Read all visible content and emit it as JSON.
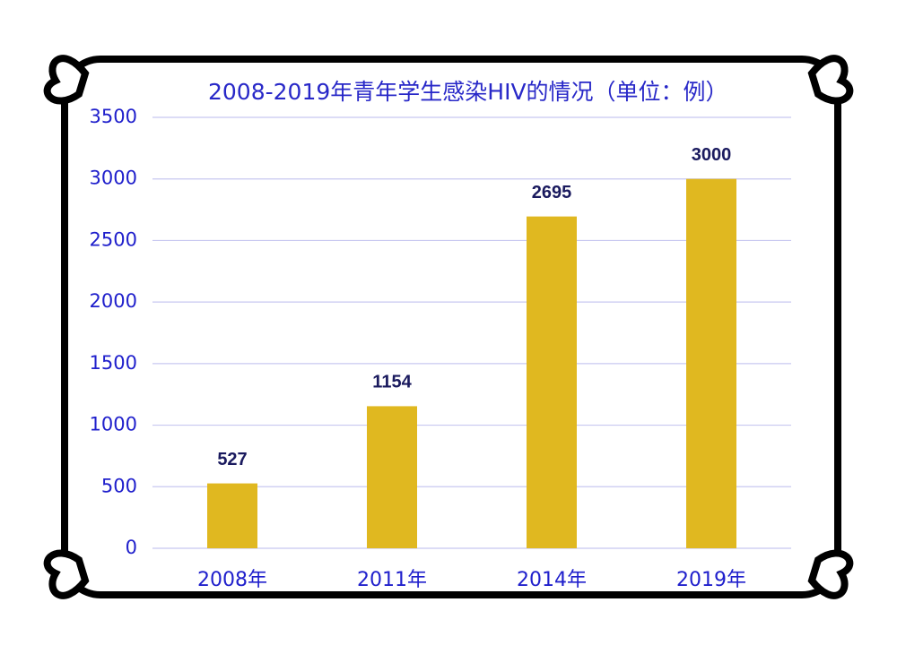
{
  "chart_data": {
    "type": "bar",
    "title": "2008-2019年青年学生感染HIV的情况（单位：例）",
    "categories": [
      "2008年",
      "2011年",
      "2014年",
      "2019年"
    ],
    "values": [
      527,
      1154,
      2695,
      3000
    ],
    "color": "#e0b820",
    "ylim": [
      0,
      3500
    ],
    "yticks": [
      0,
      500,
      1000,
      1500,
      2000,
      2500,
      3000,
      3500
    ],
    "grid": true
  }
}
